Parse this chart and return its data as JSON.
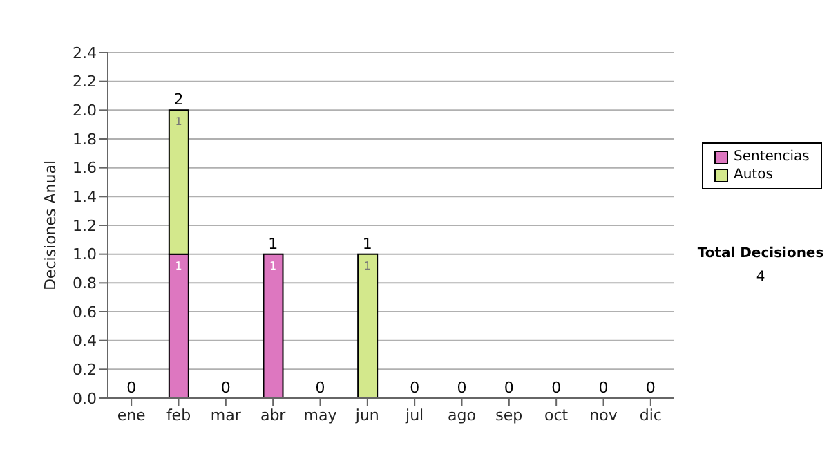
{
  "chart_data": {
    "type": "bar",
    "stacked": true,
    "ylabel": "Decisiones Anual",
    "categories": [
      "ene",
      "feb",
      "mar",
      "abr",
      "may",
      "jun",
      "jul",
      "ago",
      "sep",
      "oct",
      "nov",
      "dic"
    ],
    "series": [
      {
        "name": "Sentencias",
        "color": "#dd77c0",
        "values": [
          0,
          1,
          0,
          1,
          0,
          0,
          0,
          0,
          0,
          0,
          0,
          0
        ],
        "value_labels": [
          null,
          "1",
          null,
          "1",
          null,
          null,
          null,
          null,
          null,
          null,
          null,
          null
        ]
      },
      {
        "name": "Autos",
        "color": "#d3e88c",
        "values": [
          0,
          1,
          0,
          0,
          0,
          1,
          0,
          0,
          0,
          0,
          0,
          0
        ],
        "value_labels": [
          null,
          "1",
          null,
          null,
          null,
          "1",
          null,
          null,
          null,
          null,
          null,
          null
        ]
      }
    ],
    "totals": [
      "0",
      "2",
      "0",
      "1",
      "0",
      "1",
      "0",
      "0",
      "0",
      "0",
      "0",
      "0"
    ],
    "ylim": [
      0,
      2.4
    ],
    "yticks": [
      {
        "value": 0,
        "label": "0.0"
      },
      0.2,
      0.4,
      0.6,
      0.8,
      {
        "value": 1,
        "label": "1.0"
      },
      1.2,
      1.4,
      1.6,
      1.8,
      {
        "value": 2,
        "label": "2.0"
      },
      2.2,
      2.4
    ],
    "grid": "y",
    "legend": "right",
    "annotations": [
      "Total Decisiones",
      "4"
    ]
  }
}
